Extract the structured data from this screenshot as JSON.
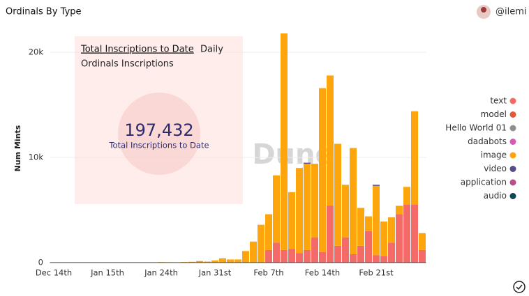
{
  "header": {
    "title": "Ordinals By Type",
    "user": "@ilemi"
  },
  "counter": {
    "tabs": [
      "Total Inscriptions to Date",
      "Daily"
    ],
    "subtitle": "Ordinals Inscriptions",
    "value": "197,432",
    "label": "Total Inscriptions to Date"
  },
  "watermark": "Dune",
  "chart_data": {
    "type": "bar",
    "stacked": true,
    "y_label": "Num Mints",
    "categories": [
      "Dec 14th",
      null,
      null,
      null,
      null,
      null,
      null,
      "Jan 15th",
      null,
      null,
      null,
      null,
      null,
      null,
      "Jan 24th",
      null,
      null,
      null,
      null,
      null,
      null,
      "Jan 31st",
      null,
      null,
      null,
      null,
      null,
      null,
      "Feb 7th",
      null,
      null,
      null,
      null,
      null,
      null,
      "Feb 14th",
      null,
      null,
      null,
      null,
      null,
      null,
      "Feb 21st",
      null,
      null,
      null,
      null,
      null,
      null
    ],
    "ylim": [
      0,
      22000
    ],
    "yticks": [
      0,
      {
        "value": 10000,
        "label": "10k"
      },
      {
        "value": 20000,
        "label": "20k"
      }
    ],
    "grid": true,
    "legend": "right",
    "series": [
      {
        "name": "text",
        "color": "#f46a67",
        "values": [
          0,
          0,
          0,
          0,
          0,
          0,
          0,
          0,
          0,
          0,
          0,
          0,
          0,
          0,
          0,
          0,
          0,
          0,
          0,
          0,
          0,
          0,
          0,
          0,
          0,
          0,
          0,
          0,
          1200,
          1900,
          1200,
          1300,
          900,
          1200,
          2400,
          1000,
          5400,
          1600,
          2400,
          800,
          1600,
          3000,
          700,
          600,
          1900,
          4600,
          5500,
          5500,
          1200
        ]
      },
      {
        "name": "model",
        "color": "#e4573d",
        "values": [
          0,
          0,
          0,
          0,
          0,
          0,
          0,
          0,
          0,
          0,
          0,
          0,
          0,
          0,
          0,
          0,
          0,
          0,
          0,
          0,
          0,
          0,
          0,
          0,
          0,
          0,
          0,
          0,
          0,
          0,
          0,
          0,
          0,
          0,
          0,
          0,
          0,
          0,
          0,
          0,
          0,
          0,
          0,
          0,
          0,
          0,
          0,
          0,
          0
        ]
      },
      {
        "name": "Hello World 01",
        "color": "#8f8f8f",
        "values": [
          0,
          0,
          0,
          0,
          0,
          0,
          0,
          0,
          0,
          0,
          0,
          0,
          0,
          0,
          0,
          0,
          0,
          0,
          0,
          0,
          0,
          0,
          0,
          0,
          0,
          0,
          0,
          0,
          0,
          0,
          0,
          0,
          0,
          0,
          0,
          0,
          0,
          0,
          0,
          0,
          0,
          0,
          0,
          0,
          0,
          0,
          0,
          0,
          0
        ]
      },
      {
        "name": "dadabots",
        "color": "#d45db4",
        "values": [
          0,
          0,
          0,
          0,
          0,
          0,
          0,
          0,
          0,
          0,
          0,
          0,
          0,
          0,
          0,
          0,
          0,
          0,
          0,
          0,
          0,
          0,
          0,
          0,
          0,
          0,
          0,
          0,
          0,
          0,
          0,
          0,
          0,
          0,
          0,
          0,
          0,
          0,
          0,
          0,
          0,
          0,
          0,
          0,
          0,
          0,
          0,
          0,
          0
        ]
      },
      {
        "name": "image",
        "color": "#fca50c",
        "values": [
          0,
          0,
          0,
          0,
          0,
          0,
          0,
          0,
          0,
          0,
          0,
          0,
          0,
          0,
          50,
          40,
          30,
          60,
          80,
          150,
          100,
          200,
          400,
          300,
          300,
          1100,
          2000,
          3600,
          3400,
          6400,
          20600,
          5400,
          8100,
          8200,
          7000,
          15600,
          12400,
          9700,
          5000,
          10100,
          3600,
          1400,
          6600,
          3300,
          2400,
          800,
          1700,
          8900,
          1600
        ]
      },
      {
        "name": "video",
        "color": "#5a4a8a",
        "values": [
          0,
          0,
          0,
          0,
          0,
          0,
          0,
          0,
          0,
          0,
          0,
          0,
          0,
          0,
          0,
          0,
          0,
          0,
          0,
          0,
          0,
          0,
          0,
          0,
          0,
          0,
          0,
          0,
          0,
          0,
          0,
          0,
          0,
          100,
          0,
          0,
          0,
          0,
          0,
          0,
          0,
          0,
          100,
          0,
          0,
          0,
          0,
          0,
          0
        ]
      },
      {
        "name": "application",
        "color": "#b5508a",
        "values": [
          0,
          0,
          0,
          0,
          0,
          0,
          0,
          0,
          0,
          0,
          0,
          0,
          0,
          0,
          0,
          0,
          0,
          0,
          0,
          0,
          0,
          0,
          0,
          0,
          0,
          0,
          0,
          0,
          0,
          0,
          0,
          0,
          0,
          0,
          0,
          0,
          0,
          0,
          0,
          0,
          0,
          0,
          0,
          0,
          0,
          0,
          0,
          0,
          0
        ]
      },
      {
        "name": "audio",
        "color": "#0f4656",
        "values": [
          0,
          0,
          0,
          0,
          0,
          0,
          0,
          0,
          0,
          0,
          0,
          0,
          0,
          0,
          0,
          0,
          0,
          0,
          0,
          0,
          0,
          0,
          0,
          0,
          0,
          0,
          0,
          0,
          0,
          0,
          0,
          0,
          0,
          0,
          0,
          0,
          0,
          0,
          0,
          0,
          0,
          0,
          0,
          0,
          0,
          0,
          0,
          0,
          0
        ]
      }
    ]
  }
}
